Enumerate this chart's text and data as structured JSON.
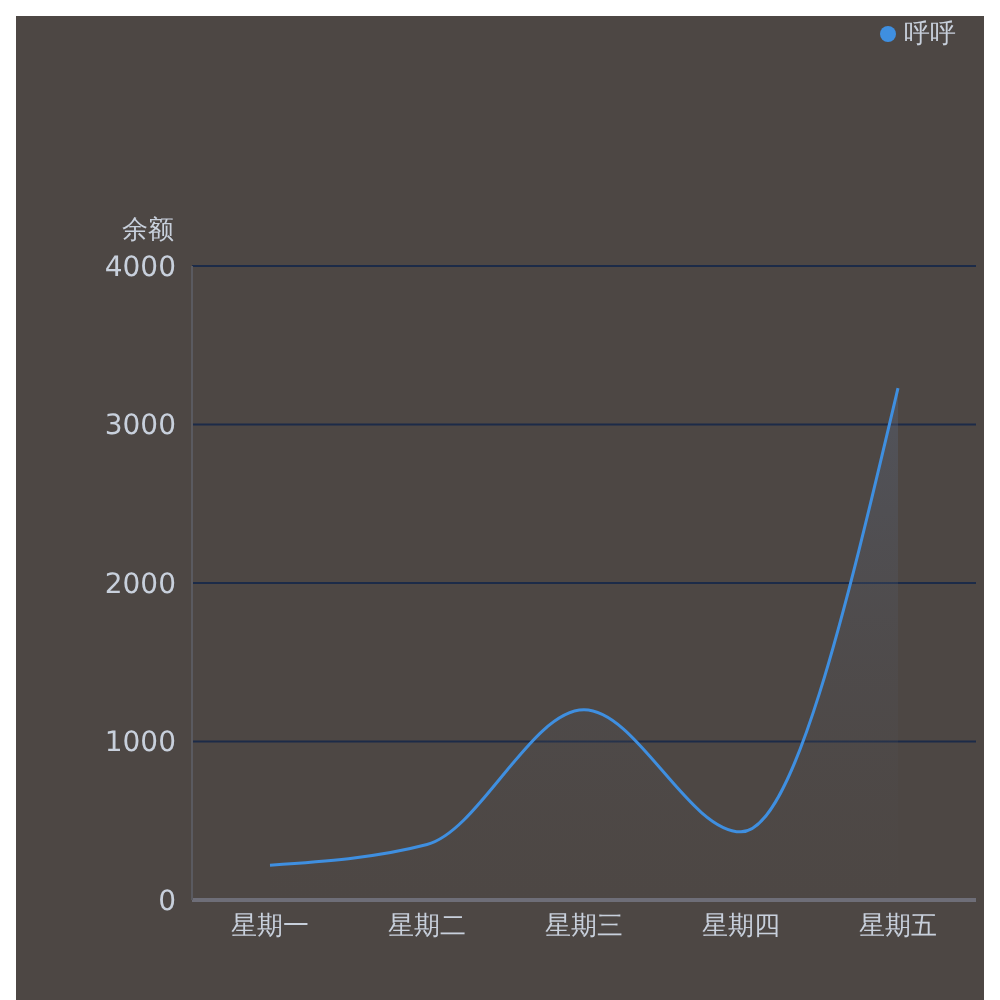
{
  "chart_data": {
    "type": "area",
    "ylabel": "余额",
    "categories": [
      "星期一",
      "星期二",
      "星期三",
      "星期四",
      "星期五"
    ],
    "series": [
      {
        "name": "呼呼",
        "color": "#3f8fe0",
        "values": [
          220,
          350,
          1200,
          430,
          3230
        ]
      }
    ],
    "ylim": [
      0,
      4000
    ],
    "yticks": [
      0,
      1000,
      2000,
      3000,
      4000
    ],
    "grid": "y",
    "legend": "top right"
  }
}
